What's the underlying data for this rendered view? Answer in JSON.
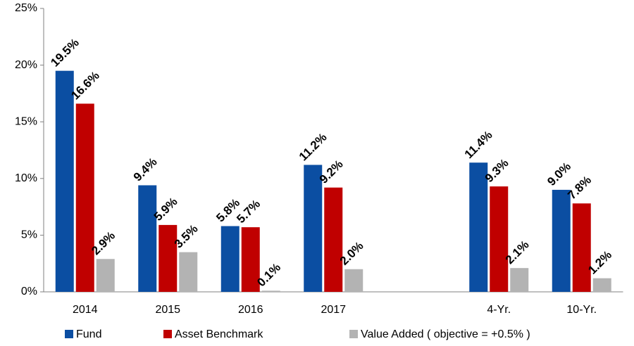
{
  "chart_data": {
    "type": "bar",
    "categories": [
      "2014",
      "2015",
      "2016",
      "2017",
      null,
      "4-Yr.",
      "10-Yr."
    ],
    "series": [
      {
        "name": "Fund",
        "color": "#0b4ea2",
        "values": [
          19.5,
          9.4,
          5.8,
          11.2,
          null,
          11.4,
          9.0
        ],
        "value_labels": [
          "19.5%",
          "9.4%",
          "5.8%",
          "11.2%",
          null,
          "11.4%",
          "9.0%"
        ]
      },
      {
        "name": "Asset Benchmark",
        "color": "#c00000",
        "values": [
          16.6,
          5.9,
          5.7,
          9.2,
          null,
          9.3,
          7.8
        ],
        "value_labels": [
          "16.6%",
          "5.9%",
          "5.7%",
          "9.2%",
          null,
          "9.3%",
          "7.8%"
        ]
      },
      {
        "name": "Value Added ( objective = +0.5% )",
        "color": "#b3b3b3",
        "values": [
          2.9,
          3.5,
          0.1,
          2.0,
          null,
          2.1,
          1.2
        ],
        "value_labels": [
          "2.9%",
          "3.5%",
          "0.1%",
          "2.0%",
          null,
          "2.1%",
          "1.2%"
        ]
      }
    ],
    "ylim": [
      0,
      25
    ],
    "yticks": [
      {
        "value": 0,
        "label": "0%"
      },
      {
        "value": 5,
        "label": "5%"
      },
      {
        "value": 10,
        "label": "10%"
      },
      {
        "value": 15,
        "label": "15%"
      },
      {
        "value": 20,
        "label": "20%"
      },
      {
        "value": 25,
        "label": "25%"
      }
    ],
    "grid": false,
    "legend": "bottom"
  }
}
